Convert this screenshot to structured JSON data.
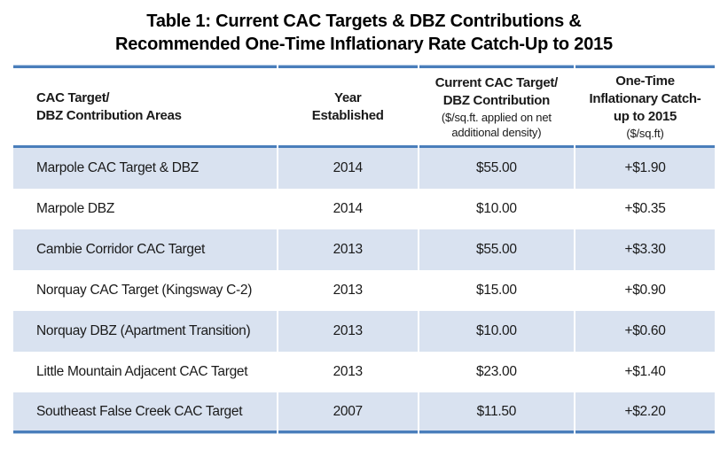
{
  "title": {
    "line1": "Table 1: Current CAC Targets & DBZ Contributions &",
    "line2": "Recommended One-Time Inflationary Rate Catch-Up to 2015"
  },
  "table": {
    "columns": [
      {
        "id": "area",
        "lines": [
          "CAC Target/",
          "DBZ Contribution Areas"
        ],
        "note_lines": []
      },
      {
        "id": "year",
        "lines": [
          "Year",
          "Established"
        ],
        "note_lines": []
      },
      {
        "id": "current",
        "lines": [
          "Current CAC Target/",
          "DBZ Contribution"
        ],
        "note_lines": [
          "($/sq.ft. applied on net",
          "additional density)"
        ]
      },
      {
        "id": "catchup",
        "lines": [
          "One-Time",
          "Inflationary Catch-",
          "up to 2015"
        ],
        "note_lines": [
          "($/sq.ft)"
        ]
      }
    ],
    "rows": [
      {
        "area": "Marpole CAC Target & DBZ",
        "year": "2014",
        "current": "$55.00",
        "catchup": "+$1.90"
      },
      {
        "area": "Marpole DBZ",
        "year": "2014",
        "current": "$10.00",
        "catchup": "+$0.35"
      },
      {
        "area": "Cambie Corridor CAC Target",
        "year": "2013",
        "current": "$55.00",
        "catchup": "+$3.30"
      },
      {
        "area": "Norquay CAC Target (Kingsway C-2)",
        "year": "2013",
        "current": "$15.00",
        "catchup": "+$0.90"
      },
      {
        "area": "Norquay DBZ (Apartment Transition)",
        "year": "2013",
        "current": "$10.00",
        "catchup": "+$0.60"
      },
      {
        "area": "Little Mountain Adjacent CAC Target",
        "year": "2013",
        "current": "$23.00",
        "catchup": "+$1.40"
      },
      {
        "area": "Southeast False Creek CAC Target",
        "year": "2007",
        "current": "$11.50",
        "catchup": "+$2.20"
      }
    ]
  },
  "colors": {
    "row_shade": "#d9e2f0",
    "border_blue": "#4a7ebb",
    "border_halo": "#b8cde6"
  }
}
